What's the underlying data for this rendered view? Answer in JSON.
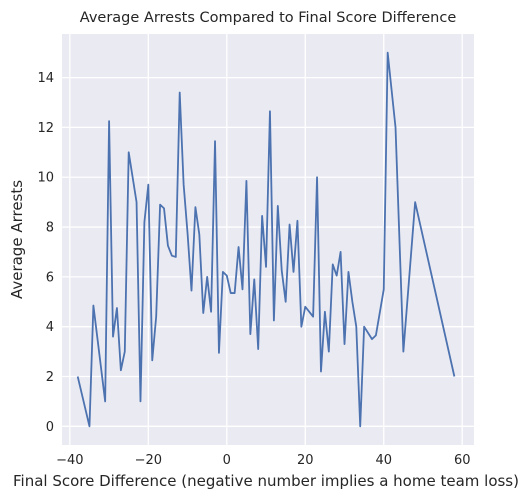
{
  "chart_data": {
    "type": "line",
    "title": "Average Arrests Compared to Final Score Difference",
    "xlabel": "Final Score Difference (negative number implies a home team loss)",
    "ylabel": "Average Arrests",
    "xlim": [
      -42,
      63
    ],
    "ylim": [
      -0.75,
      15.75
    ],
    "xticks": [
      -40,
      -20,
      0,
      20,
      40,
      60
    ],
    "yticks": [
      0,
      2,
      4,
      6,
      8,
      10,
      12,
      14
    ],
    "grid": true,
    "legend": "none",
    "colors": {
      "background": "#eaeaf2",
      "grid": "#ffffff",
      "line": "#4c72b0"
    },
    "series": [
      {
        "x": [
          -38,
          -35,
          -34,
          -31,
          -30,
          -29,
          -28,
          -27,
          -26,
          -25,
          -24,
          -23,
          -22,
          -21,
          -20,
          -19,
          -18,
          -17,
          -16,
          -15,
          -14,
          -13,
          -12,
          -11,
          -10,
          -9,
          -8,
          -7,
          -6,
          -5,
          -4,
          -3,
          -2,
          -1,
          0,
          1,
          2,
          3,
          4,
          5,
          6,
          7,
          8,
          9,
          10,
          11,
          12,
          13,
          14,
          15,
          16,
          17,
          18,
          19,
          20,
          21,
          22,
          23,
          24,
          25,
          26,
          27,
          28,
          29,
          30,
          31,
          32,
          33,
          34,
          35,
          37,
          38,
          40,
          41,
          43,
          45,
          46,
          48,
          58
        ],
        "y": [
          2,
          0,
          4.85,
          1,
          12.25,
          3.6,
          4.75,
          2.25,
          3,
          11,
          10,
          9,
          1,
          8.2,
          9.7,
          2.65,
          4.4,
          8.9,
          8.75,
          7.25,
          6.85,
          6.8,
          13.4,
          9.7,
          7.75,
          5.45,
          8.8,
          7.7,
          4.55,
          6,
          4.6,
          11.45,
          2.95,
          6.2,
          6.05,
          5.35,
          5.35,
          7.2,
          5.5,
          9.85,
          3.7,
          5.9,
          3.1,
          8.45,
          6.4,
          12.65,
          4.25,
          8.85,
          6.25,
          5,
          8.1,
          6.2,
          8.25,
          4,
          4.8,
          4.6,
          4.4,
          10,
          2.2,
          4.6,
          3,
          6.5,
          6.05,
          7,
          3.3,
          6.2,
          5,
          4,
          0,
          4,
          3.5,
          3.65,
          5.5,
          15,
          12,
          3,
          5,
          9,
          2
        ]
      }
    ]
  }
}
